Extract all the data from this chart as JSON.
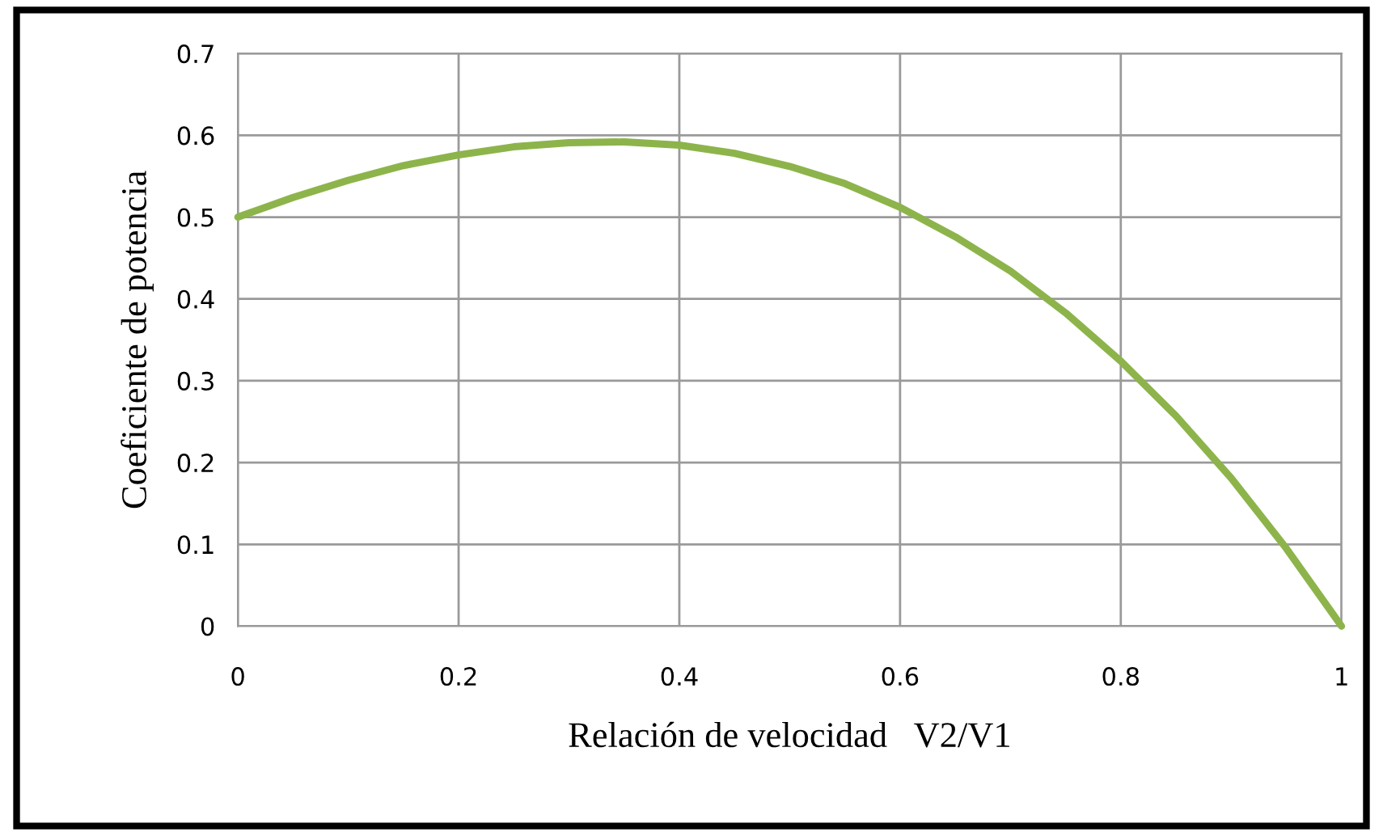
{
  "chart_data": {
    "type": "line",
    "xlabel": "Relación de velocidad   V2/V1",
    "ylabel": "Coeficiente de potencia",
    "x": [
      0,
      0.05,
      0.1,
      0.15,
      0.2,
      0.25,
      0.3,
      0.35,
      0.4,
      0.45,
      0.5,
      0.55,
      0.6,
      0.65,
      0.7,
      0.75,
      0.8,
      0.85,
      0.9,
      0.95,
      1
    ],
    "series": [
      {
        "color": "#8db44b",
        "values": [
          0.5,
          0.524,
          0.545,
          0.563,
          0.576,
          0.586,
          0.591,
          0.592,
          0.588,
          0.578,
          0.562,
          0.541,
          0.512,
          0.476,
          0.434,
          0.383,
          0.324,
          0.257,
          0.181,
          0.095,
          0
        ]
      }
    ],
    "xlim": [
      0,
      1
    ],
    "ylim": [
      0,
      0.7
    ],
    "xticks": [
      0,
      0.2,
      0.4,
      0.6,
      0.8,
      1
    ],
    "yticks": [
      0,
      0.1,
      0.2,
      0.3,
      0.4,
      0.5,
      0.6,
      0.7
    ],
    "grid": true,
    "legend": false,
    "marker": "none",
    "line_style": "solid"
  }
}
